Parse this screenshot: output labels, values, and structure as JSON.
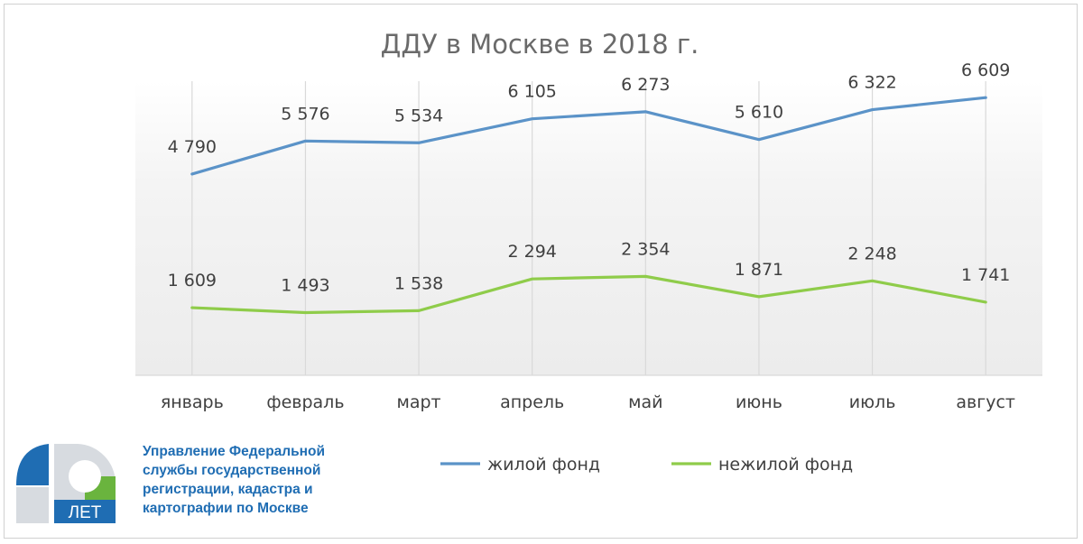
{
  "chart_data": {
    "type": "line",
    "title": "ДДУ в Москве в 2018 г.",
    "categories": [
      "январь",
      "февраль",
      "март",
      "апрель",
      "май",
      "июнь",
      "июль",
      "август"
    ],
    "series": [
      {
        "name": "жилой фонд",
        "color": "#5b93c8",
        "values": [
          4790,
          5576,
          5534,
          6105,
          6273,
          5610,
          6322,
          6609
        ],
        "labels": [
          "4 790",
          "5 576",
          "5 534",
          "6 105",
          "6 273",
          "5 610",
          "6 322",
          "6 609"
        ]
      },
      {
        "name": "нежилой фонд",
        "color": "#8fcc4a",
        "values": [
          1609,
          1493,
          1538,
          2294,
          2354,
          1871,
          2248,
          1741
        ],
        "labels": [
          "1 609",
          "1 493",
          "1 538",
          "2 294",
          "2 354",
          "1 871",
          "2 248",
          "1 741"
        ]
      }
    ],
    "ylim": [
      0,
      7000
    ],
    "legend_position": "bottom",
    "grid": "vertical"
  },
  "organization": {
    "lines": [
      "Управление Федеральной",
      "службы государственной",
      "регистрации, кадастра и",
      "картографии по Москве"
    ],
    "color": "#1f6db3"
  },
  "logo": {
    "text": "ЛЕТ",
    "colors": {
      "blue": "#1f6db3",
      "green": "#6ab43e",
      "gray": "#d7dbe0"
    }
  }
}
